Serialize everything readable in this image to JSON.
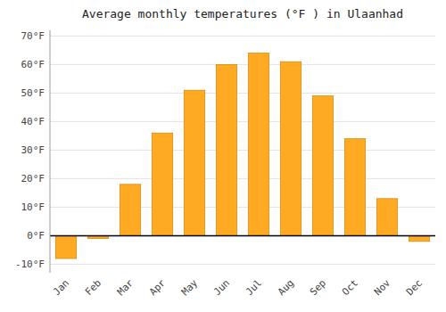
{
  "chart_data": {
    "type": "bar",
    "title": "Average monthly temperatures (°F ) in Ulaanhad",
    "categories": [
      "Jan",
      "Feb",
      "Mar",
      "Apr",
      "May",
      "Jun",
      "Jul",
      "Aug",
      "Sep",
      "Oct",
      "Nov",
      "Dec"
    ],
    "values": [
      -8,
      -1,
      18,
      36,
      51,
      60,
      64,
      61,
      49,
      34,
      13,
      -2
    ],
    "color": "#FFAA22",
    "ylim": [
      -13,
      72
    ],
    "yticks": [
      {
        "value": -10,
        "label": "-10°F"
      },
      {
        "value": 0,
        "label": "0°F"
      },
      {
        "value": 10,
        "label": "10°F"
      },
      {
        "value": 20,
        "label": "20°F"
      },
      {
        "value": 30,
        "label": "30°F"
      },
      {
        "value": 40,
        "label": "40°F"
      },
      {
        "value": 50,
        "label": "50°F"
      },
      {
        "value": 60,
        "label": "60°F"
      },
      {
        "value": 70,
        "label": "70°F"
      }
    ],
    "grid": true
  }
}
